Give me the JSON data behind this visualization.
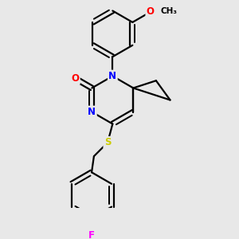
{
  "bg_color": "#e8e8e8",
  "bond_color": "#000000",
  "bond_lw": 1.6,
  "dbo": 0.05,
  "atom_colors": {
    "N": "#0000ff",
    "O": "#ff0000",
    "S": "#cccc00",
    "F": "#ff00ff",
    "C": "#000000"
  },
  "fs": 8.5,
  "figsize": [
    3.0,
    3.0
  ],
  "dpi": 100,
  "xlim": [
    -1.6,
    1.8
  ],
  "ylim": [
    -2.4,
    2.1
  ]
}
